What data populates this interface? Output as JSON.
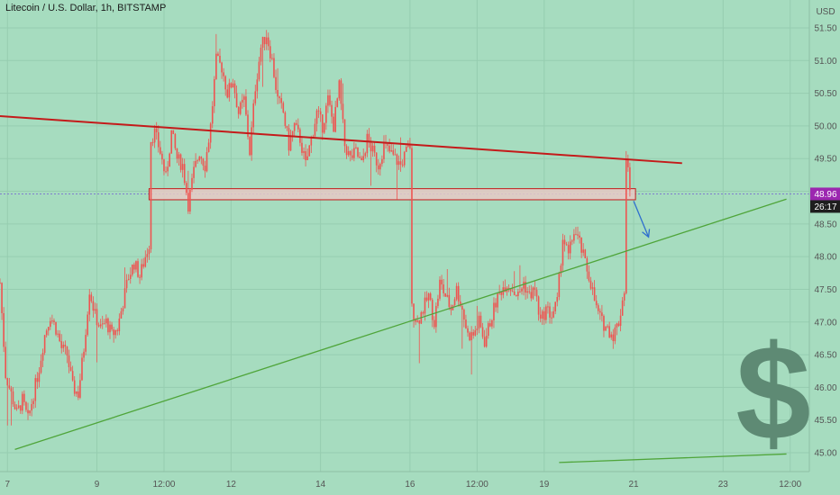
{
  "header": {
    "title": "Litecoin / U.S. Dollar, 1h, BITSTAMP",
    "currency": "USD"
  },
  "colors": {
    "background": "#a6dcbf",
    "candle": "#ef5350",
    "resistance_line": "#c41a1a",
    "support_line": "#4fa53a",
    "arrow": "#2f6fce",
    "current_price_bg": "#9c27b0",
    "countdown_bg": "#1e1e1e",
    "zone_fill": "#e6c9c4",
    "zone_stroke": "#c41a1a",
    "dollar_sign": "#5e8a74"
  },
  "icons": {
    "watermark": "dollar-sign-icon"
  },
  "chart_data": {
    "type": "candlestick",
    "x_unit": "hour_index",
    "x_range": [
      0,
      428
    ],
    "y_range": [
      44.85,
      51.85
    ],
    "y_ticks": [
      "45.00",
      "45.50",
      "46.00",
      "46.50",
      "47.00",
      "47.50",
      "48.00",
      "48.50",
      "49.00",
      "49.50",
      "50.00",
      "50.50",
      "51.00",
      "51.50"
    ],
    "x_ticks": [
      {
        "x": 4,
        "label": "7"
      },
      {
        "x": 52,
        "label": "9"
      },
      {
        "x": 88,
        "label": "12:00"
      },
      {
        "x": 124,
        "label": "12"
      },
      {
        "x": 172,
        "label": "14"
      },
      {
        "x": 220,
        "label": "16"
      },
      {
        "x": 256,
        "label": "12:00"
      },
      {
        "x": 292,
        "label": "19"
      },
      {
        "x": 340,
        "label": "21"
      },
      {
        "x": 388,
        "label": "23"
      },
      {
        "x": 424,
        "label": "12:00"
      }
    ],
    "current_price": "48.96",
    "countdown": "26:17",
    "path_points": [
      [
        0,
        47.6
      ],
      [
        3,
        46.2
      ],
      [
        6,
        45.9
      ],
      [
        9,
        45.6
      ],
      [
        12,
        45.8
      ],
      [
        15,
        45.5
      ],
      [
        18,
        45.9
      ],
      [
        21,
        46.3
      ],
      [
        24,
        46.8
      ],
      [
        27,
        47.1
      ],
      [
        30,
        46.9
      ],
      [
        33,
        46.6
      ],
      [
        36,
        46.5
      ],
      [
        39,
        46.0
      ],
      [
        42,
        45.9
      ],
      [
        45,
        46.6
      ],
      [
        48,
        47.5
      ],
      [
        51,
        47.1
      ],
      [
        54,
        46.9
      ],
      [
        57,
        47.0
      ],
      [
        60,
        46.8
      ],
      [
        63,
        46.9
      ],
      [
        66,
        47.3
      ],
      [
        69,
        47.7
      ],
      [
        72,
        47.9
      ],
      [
        75,
        47.7
      ],
      [
        78,
        48.0
      ],
      [
        80,
        48.2
      ],
      [
        81,
        49.8
      ],
      [
        83,
        49.9
      ],
      [
        86,
        49.6
      ],
      [
        89,
        49.2
      ],
      [
        92,
        49.9
      ],
      [
        95,
        49.5
      ],
      [
        98,
        49.4
      ],
      [
        101,
        48.8
      ],
      [
        104,
        49.3
      ],
      [
        107,
        49.6
      ],
      [
        110,
        49.4
      ],
      [
        113,
        50.0
      ],
      [
        116,
        51.0
      ],
      [
        119,
        50.9
      ],
      [
        122,
        50.5
      ],
      [
        125,
        50.7
      ],
      [
        128,
        50.2
      ],
      [
        131,
        50.4
      ],
      [
        134,
        49.6
      ],
      [
        137,
        50.6
      ],
      [
        140,
        51.2
      ],
      [
        143,
        51.4
      ],
      [
        146,
        51.0
      ],
      [
        149,
        50.4
      ],
      [
        152,
        50.2
      ],
      [
        155,
        49.7
      ],
      [
        158,
        50.0
      ],
      [
        161,
        49.8
      ],
      [
        164,
        49.4
      ],
      [
        167,
        49.8
      ],
      [
        170,
        50.2
      ],
      [
        173,
        50.0
      ],
      [
        176,
        50.4
      ],
      [
        179,
        50.0
      ],
      [
        182,
        50.6
      ],
      [
        185,
        49.7
      ],
      [
        188,
        49.5
      ],
      [
        191,
        49.6
      ],
      [
        194,
        49.4
      ],
      [
        197,
        49.8
      ],
      [
        200,
        49.6
      ],
      [
        203,
        49.4
      ],
      [
        206,
        49.7
      ],
      [
        209,
        49.6
      ],
      [
        212,
        49.5
      ],
      [
        215,
        49.4
      ],
      [
        218,
        49.6
      ],
      [
        220,
        49.7
      ],
      [
        221,
        47.2
      ],
      [
        224,
        47.0
      ],
      [
        227,
        47.2
      ],
      [
        230,
        47.4
      ],
      [
        233,
        47.0
      ],
      [
        236,
        47.6
      ],
      [
        239,
        47.4
      ],
      [
        242,
        47.2
      ],
      [
        245,
        47.5
      ],
      [
        248,
        47.2
      ],
      [
        251,
        46.8
      ],
      [
        254,
        46.8
      ],
      [
        257,
        47.0
      ],
      [
        260,
        46.7
      ],
      [
        263,
        47.0
      ],
      [
        266,
        47.3
      ],
      [
        269,
        47.5
      ],
      [
        272,
        47.6
      ],
      [
        275,
        47.5
      ],
      [
        278,
        47.4
      ],
      [
        281,
        47.6
      ],
      [
        284,
        47.4
      ],
      [
        287,
        47.5
      ],
      [
        290,
        47.0
      ],
      [
        293,
        47.2
      ],
      [
        296,
        47.1
      ],
      [
        299,
        47.3
      ],
      [
        302,
        48.3
      ],
      [
        305,
        48.0
      ],
      [
        308,
        48.4
      ],
      [
        311,
        48.2
      ],
      [
        314,
        47.9
      ],
      [
        317,
        47.6
      ],
      [
        320,
        47.2
      ],
      [
        323,
        47.0
      ],
      [
        326,
        46.9
      ],
      [
        329,
        46.8
      ],
      [
        332,
        47.0
      ],
      [
        335,
        47.5
      ],
      [
        336,
        49.5
      ],
      [
        338,
        49.1
      ]
    ]
  },
  "annotations": {
    "resistance": {
      "x1": 0,
      "y1": 50.15,
      "x2": 366,
      "y2": 49.43
    },
    "support": {
      "x1": 8,
      "y1": 45.05,
      "x2": 422,
      "y2": 48.88
    },
    "support_lower": {
      "x1": 300,
      "y1": 44.85,
      "x2": 422,
      "y2": 44.98
    },
    "zone": {
      "x1": 80,
      "x2": 341,
      "y_low": 48.87,
      "y_high": 49.04
    },
    "arrow": {
      "x1": 340,
      "y1": 48.85,
      "x2": 348,
      "y2": 48.3
    },
    "current_price_line": 48.96
  }
}
